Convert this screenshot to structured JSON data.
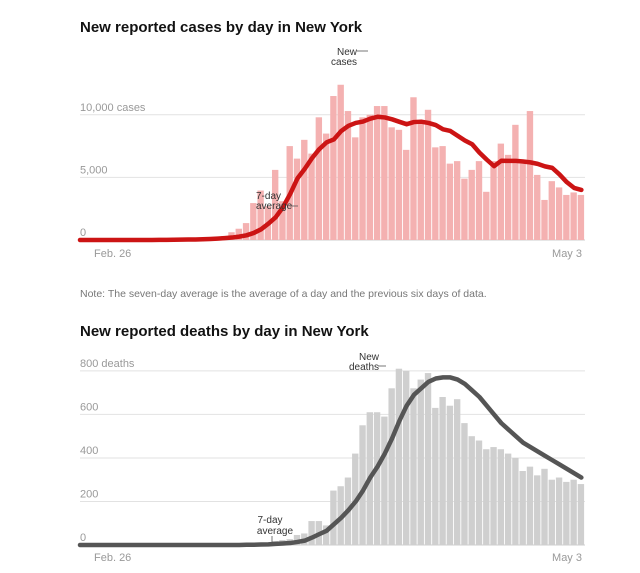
{
  "colors": {
    "cases_bar": "#f4b1b1",
    "cases_line": "#cc1414",
    "deaths_bar": "#cfcfcf",
    "deaths_line": "#555555"
  },
  "note": "Note: The seven-day average is the average of a day and the previous six days of data.",
  "chart_data": [
    {
      "type": "bar",
      "title": "New reported cases by day in New York",
      "series_label": "New cases",
      "avg_label": "7-day average",
      "y_ticks": [
        {
          "value": 0,
          "label": "0"
        },
        {
          "value": 5000,
          "label": "5,000"
        },
        {
          "value": 10000,
          "label": "10,000 cases"
        }
      ],
      "ylim": [
        0,
        12500
      ],
      "x_labels": {
        "start": "Feb. 26",
        "end": "May 3"
      },
      "dates": [
        "Feb 26",
        "Feb 27",
        "Feb 28",
        "Feb 29",
        "Mar 1",
        "Mar 2",
        "Mar 3",
        "Mar 4",
        "Mar 5",
        "Mar 6",
        "Mar 7",
        "Mar 8",
        "Mar 9",
        "Mar 10",
        "Mar 11",
        "Mar 12",
        "Mar 13",
        "Mar 14",
        "Mar 15",
        "Mar 16",
        "Mar 17",
        "Mar 18",
        "Mar 19",
        "Mar 20",
        "Mar 21",
        "Mar 22",
        "Mar 23",
        "Mar 24",
        "Mar 25",
        "Mar 26",
        "Mar 27",
        "Mar 28",
        "Mar 29",
        "Mar 30",
        "Mar 31",
        "Apr 1",
        "Apr 2",
        "Apr 3",
        "Apr 4",
        "Apr 5",
        "Apr 6",
        "Apr 7",
        "Apr 8",
        "Apr 9",
        "Apr 10",
        "Apr 11",
        "Apr 12",
        "Apr 13",
        "Apr 14",
        "Apr 15",
        "Apr 16",
        "Apr 17",
        "Apr 18",
        "Apr 19",
        "Apr 20",
        "Apr 21",
        "Apr 22",
        "Apr 23",
        "Apr 24",
        "Apr 25",
        "Apr 26",
        "Apr 27",
        "Apr 28",
        "Apr 29",
        "Apr 30",
        "May 1",
        "May 2",
        "May 3"
      ],
      "values": [
        0,
        0,
        0,
        0,
        0,
        1,
        2,
        9,
        11,
        22,
        44,
        53,
        75,
        52,
        91,
        142,
        180,
        175,
        320,
        620,
        900,
        1350,
        2950,
        3950,
        2700,
        5600,
        3100,
        7500,
        6500,
        8000,
        6900,
        9800,
        8500,
        11500,
        12400,
        10300,
        8200,
        9800,
        10000,
        10700,
        10700,
        9000,
        8800,
        7200,
        11400,
        9500,
        10400,
        7400,
        7500,
        6100,
        6300,
        4900,
        5600,
        6300,
        3850,
        6300,
        7700,
        6800,
        9200,
        6100,
        10300,
        5200,
        3200,
        4700,
        4200,
        3600,
        3800,
        3600
      ],
      "avg": [
        0,
        0,
        0,
        0,
        0,
        0,
        0,
        2,
        3,
        6,
        13,
        20,
        30,
        38,
        45,
        60,
        85,
        110,
        147,
        196,
        270,
        375,
        565,
        855,
        1300,
        1815,
        2610,
        3680,
        4920,
        5680,
        6540,
        7260,
        7800,
        8030,
        8700,
        9120,
        9350,
        9460,
        9690,
        9840,
        9790,
        9640,
        9440,
        9250,
        9420,
        9450,
        9350,
        9180,
        8840,
        8710,
        8330,
        7950,
        7650,
        6980,
        6420,
        5900,
        6330,
        6320,
        6320,
        6270,
        6200,
        6080,
        5880,
        5760,
        5240,
        4620,
        4160,
        4000
      ]
    },
    {
      "type": "bar",
      "title": "New reported deaths by day in New York",
      "series_label": "New deaths",
      "avg_label": "7-day average",
      "y_ticks": [
        {
          "value": 0,
          "label": "0"
        },
        {
          "value": 200,
          "label": "200"
        },
        {
          "value": 400,
          "label": "400"
        },
        {
          "value": 600,
          "label": "600"
        },
        {
          "value": 800,
          "label": "800 deaths"
        }
      ],
      "ylim": [
        0,
        850
      ],
      "x_labels": {
        "start": "Feb. 26",
        "end": "May 3"
      },
      "dates": [
        "Feb 26",
        "Feb 27",
        "Feb 28",
        "Feb 29",
        "Mar 1",
        "Mar 2",
        "Mar 3",
        "Mar 4",
        "Mar 5",
        "Mar 6",
        "Mar 7",
        "Mar 8",
        "Mar 9",
        "Mar 10",
        "Mar 11",
        "Mar 12",
        "Mar 13",
        "Mar 14",
        "Mar 15",
        "Mar 16",
        "Mar 17",
        "Mar 18",
        "Mar 19",
        "Mar 20",
        "Mar 21",
        "Mar 22",
        "Mar 23",
        "Mar 24",
        "Mar 25",
        "Mar 26",
        "Mar 27",
        "Mar 28",
        "Mar 29",
        "Mar 30",
        "Mar 31",
        "Apr 1",
        "Apr 2",
        "Apr 3",
        "Apr 4",
        "Apr 5",
        "Apr 6",
        "Apr 7",
        "Apr 8",
        "Apr 9",
        "Apr 10",
        "Apr 11",
        "Apr 12",
        "Apr 13",
        "Apr 14",
        "Apr 15",
        "Apr 16",
        "Apr 17",
        "Apr 18",
        "Apr 19",
        "Apr 20",
        "Apr 21",
        "Apr 22",
        "Apr 23",
        "Apr 24",
        "Apr 25",
        "Apr 26",
        "Apr 27",
        "Apr 28",
        "Apr 29",
        "Apr 30",
        "May 1",
        "May 2",
        "May 3"
      ],
      "values": [
        0,
        0,
        0,
        0,
        0,
        0,
        0,
        0,
        0,
        0,
        0,
        0,
        0,
        0,
        0,
        0,
        0,
        0,
        0,
        0,
        0,
        2,
        5,
        7,
        10,
        18,
        23,
        27,
        46,
        53,
        110,
        110,
        90,
        250,
        270,
        310,
        420,
        550,
        610,
        610,
        590,
        720,
        810,
        800,
        720,
        760,
        790,
        630,
        680,
        640,
        670,
        560,
        500,
        480,
        440,
        450,
        440,
        420,
        400,
        340,
        360,
        320,
        350,
        300,
        310,
        290,
        300,
        280
      ],
      "avg": [
        0,
        0,
        0,
        0,
        0,
        0,
        0,
        0,
        0,
        0,
        0,
        0,
        0,
        0,
        0,
        0,
        0,
        0,
        0,
        0,
        0,
        1,
        1,
        2,
        3,
        5,
        7,
        9,
        14,
        20,
        34,
        50,
        65,
        95,
        125,
        160,
        200,
        250,
        310,
        360,
        420,
        490,
        570,
        640,
        690,
        720,
        750,
        765,
        770,
        770,
        760,
        740,
        710,
        680,
        640,
        600,
        560,
        530,
        500,
        470,
        450,
        430,
        410,
        390,
        370,
        350,
        330,
        310
      ]
    }
  ]
}
